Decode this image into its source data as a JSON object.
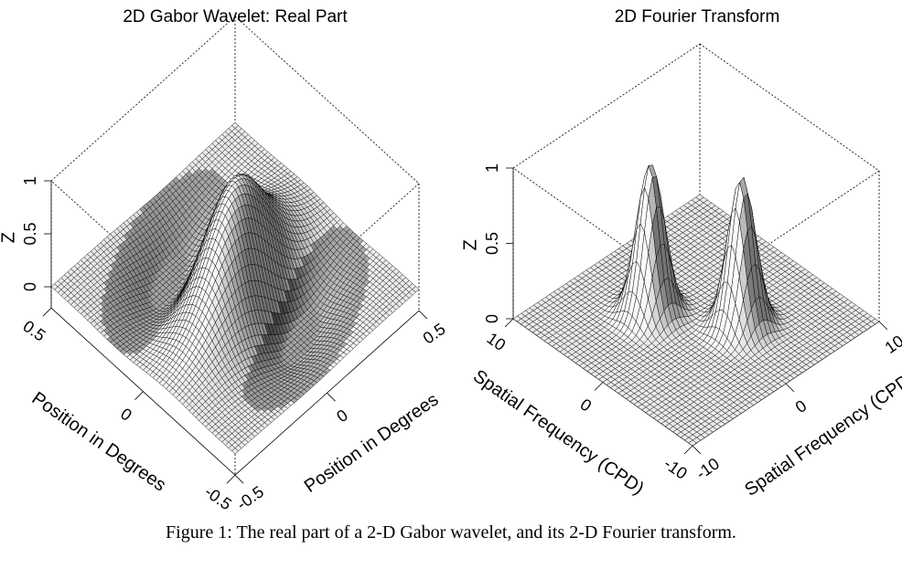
{
  "chart_data": [
    {
      "type": "surface",
      "title": "2D Gabor Wavelet:  Real Part",
      "xlabel": "Position in Degrees",
      "ylabel": "Position in Degrees",
      "zlabel": "Z",
      "xlim": [
        -0.5,
        0.5
      ],
      "ylim": [
        -0.5,
        0.5
      ],
      "zlim": [
        -0.2,
        1
      ],
      "xticks": [
        {
          "v": 0.5,
          "label": "0.5"
        },
        {
          "v": 0,
          "label": "0"
        },
        {
          "v": -0.5,
          "label": "-0.5"
        }
      ],
      "yticks": [
        {
          "v": -0.5,
          "label": "-0.5"
        },
        {
          "v": 0,
          "label": "0"
        },
        {
          "v": 0.5,
          "label": "0.5"
        }
      ],
      "zticks": [
        {
          "v": 0,
          "label": "0"
        },
        {
          "v": 0.5,
          "label": "0.5"
        },
        {
          "v": 1,
          "label": "1"
        }
      ],
      "function": "gabor_real",
      "params": {
        "freq_cycles_per_degree": 1.4,
        "sigma_deg": 0.19,
        "orientation_deg": -20,
        "peak": 1.0,
        "trough": -0.16
      },
      "grid_n": 56
    },
    {
      "type": "surface",
      "title": "2D Fourier Transform",
      "xlabel": "Spatial Frequency (CPD)",
      "ylabel": "Spatial Frequency (CPD)",
      "zlabel": "Z",
      "xlim": [
        -10,
        10
      ],
      "ylim": [
        -10,
        10
      ],
      "zlim": [
        0,
        1
      ],
      "xticks": [
        {
          "v": 10,
          "label": "10"
        },
        {
          "v": 0,
          "label": "0"
        },
        {
          "v": -10,
          "label": "-10"
        }
      ],
      "yticks": [
        {
          "v": -10,
          "label": "-10"
        },
        {
          "v": 0,
          "label": "0"
        },
        {
          "v": 10,
          "label": "10"
        }
      ],
      "zticks": [
        {
          "v": 0,
          "label": "0"
        },
        {
          "v": 0.5,
          "label": "0.5"
        },
        {
          "v": 1,
          "label": "1"
        }
      ],
      "function": "gaussian_pair",
      "params": {
        "centers": [
          [
            -3.0,
            2.0
          ],
          [
            3.0,
            -2.0
          ]
        ],
        "sigma_cpd": 1.1,
        "heights": [
          1.0,
          1.0
        ]
      },
      "grid_n": 46
    }
  ],
  "caption": "Figure 1: The real part of a 2-D Gabor wavelet, and its 2-D Fourier transform."
}
